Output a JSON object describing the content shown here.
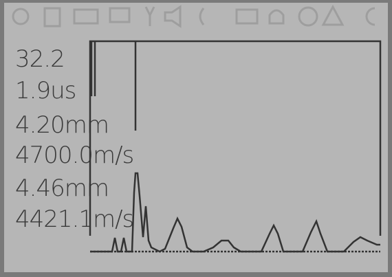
{
  "readings": [
    "32.2",
    "1.9us",
    "4.20mm",
    "4700.0m/s",
    "4.46mm",
    "4421.1m/s"
  ]
}
